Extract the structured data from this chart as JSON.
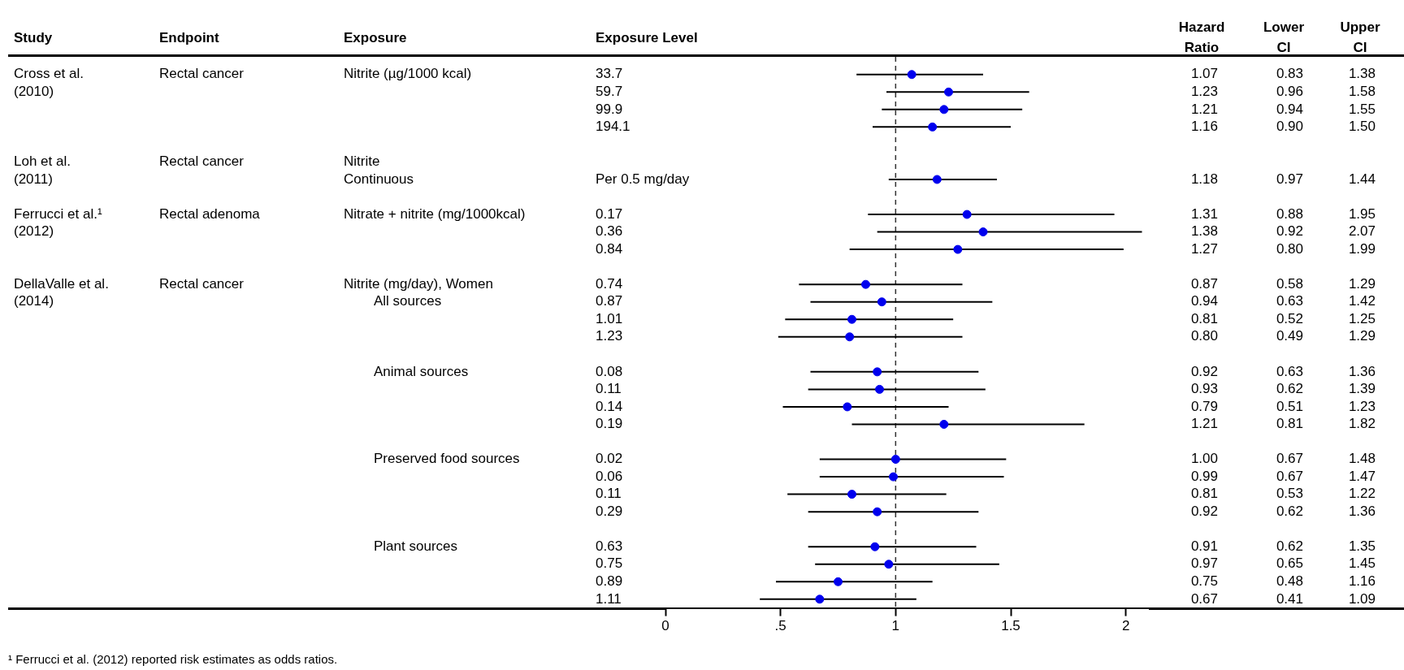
{
  "chart_data": {
    "type": "scatter",
    "orientation": "horizontal",
    "ylabel": "Exposure Level",
    "annotations": [
      "Study",
      "Endpoint",
      "Exposure",
      "Hazard Ratio",
      "Lower CI",
      "Upper CI",
      "Cross et al.",
      "(2010)",
      "Rectal cancer",
      "Nitrite (µg/1000 kcal)",
      "Loh et al.",
      "(2011)",
      "Rectal cancer",
      "Nitrite",
      "Continuous",
      "Ferrucci et al.¹",
      "(2012)",
      "Rectal adenoma",
      "Nitrate + nitrite (mg/1000kcal)",
      "DellaValle et al.",
      "(2014)",
      "Rectal cancer",
      "Nitrite (mg/day), Women",
      "All sources",
      "Animal sources",
      "Preserved food sources",
      "Plant sources",
      "¹ Ferrucci et al. (2012) reported risk estimates as odds ratios.",
      "0.83",
      "1.38",
      "0.96",
      "1.58",
      "0.94",
      "1.55",
      "0.90",
      "1.50",
      "0.97",
      "1.44",
      "0.88",
      "1.95",
      "0.92",
      "2.07",
      "0.80",
      "1.99",
      "0.58",
      "1.29",
      "0.63",
      "1.42",
      "0.52",
      "1.25",
      "0.49",
      "1.29",
      "0.63",
      "1.36",
      "0.62",
      "1.39",
      "0.51",
      "1.23",
      "0.81",
      "1.82",
      "0.67",
      "1.48",
      "0.67",
      "1.47",
      "0.53",
      "1.22",
      "0.62",
      "1.36",
      "0.62",
      "1.35",
      "0.65",
      "1.45",
      "0.48",
      "1.16",
      "0.41",
      "1.09"
    ],
    "categories": [
      "33.7",
      "59.7",
      "99.9",
      "194.1",
      null,
      null,
      "Per 0.5 mg/day",
      null,
      "0.17",
      "0.36",
      "0.84",
      null,
      "0.74",
      "0.87",
      "1.01",
      "1.23",
      null,
      "0.08",
      "0.11",
      "0.14",
      "0.19",
      null,
      "0.02",
      "0.06",
      "0.11",
      "0.29",
      null,
      "0.63",
      "0.75",
      "0.89",
      "1.11"
    ],
    "values": [
      1.07,
      1.23,
      1.21,
      1.16,
      null,
      null,
      1.18,
      null,
      1.31,
      1.38,
      1.27,
      null,
      0.87,
      0.94,
      0.81,
      0.8,
      null,
      0.92,
      0.93,
      0.79,
      1.21,
      null,
      1.0,
      0.99,
      0.81,
      0.92,
      null,
      0.91,
      0.97,
      0.75,
      0.67
    ],
    "value_labels": [
      "1.07",
      "1.23",
      "1.21",
      "1.16",
      null,
      null,
      "1.18",
      null,
      "1.31",
      "1.38",
      "1.27",
      null,
      "0.87",
      "0.94",
      "0.81",
      "0.80",
      null,
      "0.92",
      "0.93",
      "0.79",
      "1.21",
      null,
      "1.00",
      "0.99",
      "0.81",
      "0.92",
      null,
      "0.91",
      "0.97",
      "0.75",
      "0.67"
    ],
    "errors": [
      [
        0.83,
        1.38
      ],
      [
        0.96,
        1.58
      ],
      [
        0.94,
        1.55
      ],
      [
        0.9,
        1.5
      ],
      null,
      null,
      [
        0.97,
        1.44
      ],
      null,
      [
        0.88,
        1.95
      ],
      [
        0.92,
        2.07
      ],
      [
        0.8,
        1.99
      ],
      null,
      [
        0.58,
        1.29
      ],
      [
        0.63,
        1.42
      ],
      [
        0.52,
        1.25
      ],
      [
        0.49,
        1.29
      ],
      null,
      [
        0.63,
        1.36
      ],
      [
        0.62,
        1.39
      ],
      [
        0.51,
        1.23
      ],
      [
        0.81,
        1.82
      ],
      null,
      [
        0.67,
        1.48
      ],
      [
        0.67,
        1.47
      ],
      [
        0.53,
        1.22
      ],
      [
        0.62,
        1.36
      ],
      null,
      [
        0.62,
        1.35
      ],
      [
        0.65,
        1.45
      ],
      [
        0.48,
        1.16
      ],
      [
        0.41,
        1.09
      ]
    ],
    "color": "#0000ee",
    "marker": "circle",
    "xlim": [
      0,
      2.1
    ],
    "xticks": [
      0,
      {
        "value": 0.5,
        "label": ".5"
      },
      1,
      1.5,
      2
    ],
    "ref_lines": [
      {
        "axis": "x",
        "value": 1,
        "line_style": "dashed"
      }
    ]
  }
}
